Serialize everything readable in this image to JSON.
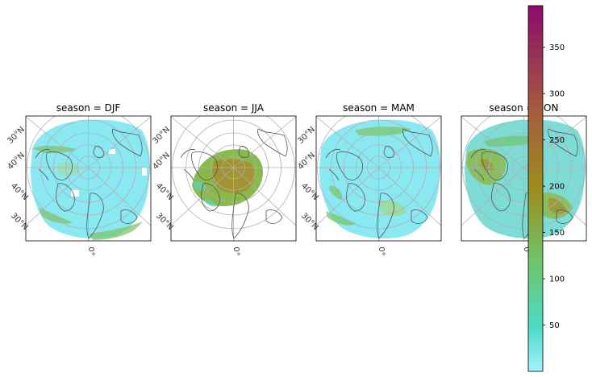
{
  "chart_data": {
    "type": "heatmap",
    "projection": "north polar stereographic",
    "facet_by": "season",
    "panels": [
      {
        "title": "season = DJF",
        "season": "DJF",
        "coverage": "full",
        "dominant_range": [
          10,
          120
        ],
        "max_region_value": 150
      },
      {
        "title": "season = JJA",
        "season": "JJA",
        "coverage": "reduced",
        "dominant_range": [
          100,
          220
        ],
        "max_region_value": 240
      },
      {
        "title": "season = MAM",
        "season": "MAM",
        "coverage": "full",
        "dominant_range": [
          10,
          130
        ],
        "max_region_value": 160
      },
      {
        "title": "season = SON",
        "season": "SON",
        "coverage": "full",
        "dominant_range": [
          30,
          200
        ],
        "max_region_value": 230
      }
    ],
    "latitude_labels_left": [
      "30°N",
      "40°N",
      "40°N",
      "30°N"
    ],
    "longitude_label_bottom": "0°",
    "colorbar": {
      "ticks": [
        50,
        100,
        150,
        200,
        250,
        300,
        350
      ],
      "range": [
        0,
        395
      ],
      "colors": [
        "#a0f2ff",
        "#4bdcc4",
        "#6ec46a",
        "#9e8c1e",
        "#a55a3e",
        "#8c0a6c"
      ]
    },
    "grid": true,
    "coastlines": true
  },
  "labels": {
    "panel_titles": [
      "season = DJF",
      "season = JJA",
      "season = MAM",
      "season = SON"
    ]
  }
}
